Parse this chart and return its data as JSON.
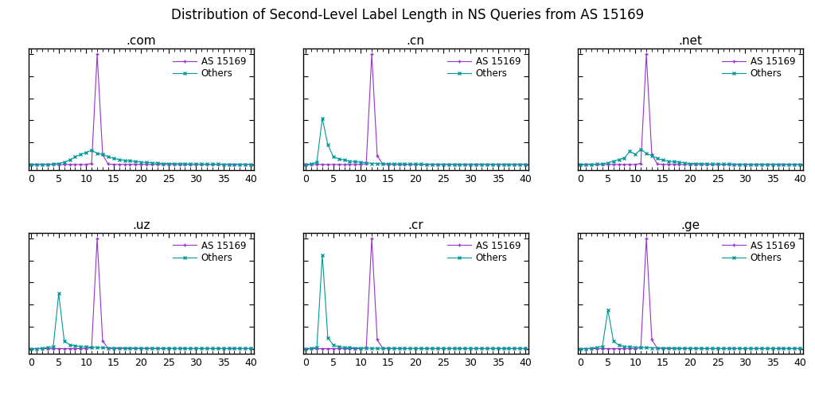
{
  "title": "Distribution of Second-Level Label Length in NS Queries from AS 15169",
  "subplots": [
    {
      "tld": ".com",
      "as15169": [
        0,
        0,
        0,
        0,
        0,
        0,
        0,
        0,
        0,
        0,
        0,
        0.01,
        1.0,
        0.09,
        0.003,
        0.001,
        0.0005,
        0.0003,
        0.0003,
        0.0003,
        0.0002,
        0.0002,
        0.0002,
        0.0002,
        0.0002,
        0.0001,
        0.0001,
        0.0001,
        0.0001,
        0.0001,
        0.0001,
        0.0001,
        0.0001,
        0.0001,
        0.0001,
        0.0001,
        0.0001,
        0.0001,
        0.0001,
        0.0001,
        0.0001
      ],
      "others": [
        0,
        0,
        0.001,
        0.002,
        0.004,
        0.01,
        0.02,
        0.04,
        0.07,
        0.09,
        0.11,
        0.13,
        0.1,
        0.09,
        0.07,
        0.055,
        0.045,
        0.038,
        0.032,
        0.027,
        0.022,
        0.018,
        0.015,
        0.012,
        0.01,
        0.009,
        0.008,
        0.007,
        0.006,
        0.005,
        0.004,
        0.004,
        0.003,
        0.003,
        0.003,
        0.002,
        0.002,
        0.002,
        0.002,
        0.002,
        0.002
      ]
    },
    {
      "tld": ".cn",
      "as15169": [
        0,
        0,
        0,
        0,
        0,
        0,
        0,
        0,
        0,
        0,
        0,
        0.008,
        1.0,
        0.08,
        0.003,
        0.001,
        0.0005,
        0.0003,
        0.0003,
        0.0002,
        0.0002,
        0.0002,
        0.0002,
        0.0001,
        0.0001,
        0.0001,
        0.0001,
        0.0001,
        0.0001,
        0.0001,
        0.0001,
        0.0001,
        0.0001,
        0.0001,
        0.0001,
        0.0001,
        0.0001,
        0.0001,
        0.0001,
        0.0001,
        0.0001
      ],
      "others": [
        0,
        0.005,
        0.02,
        0.42,
        0.18,
        0.07,
        0.05,
        0.04,
        0.03,
        0.025,
        0.02,
        0.015,
        0.01,
        0.009,
        0.007,
        0.006,
        0.006,
        0.005,
        0.004,
        0.004,
        0.003,
        0.003,
        0.002,
        0.002,
        0.002,
        0.001,
        0.001,
        0.001,
        0.001,
        0.001,
        0.001,
        0.001,
        0.001,
        0.001,
        0.001,
        0.001,
        0.001,
        0.001,
        0.001,
        0.001,
        0.001
      ]
    },
    {
      "tld": ".net",
      "as15169": [
        0,
        0,
        0,
        0,
        0,
        0,
        0,
        0,
        0,
        0,
        0,
        0.01,
        1.0,
        0.09,
        0.004,
        0.001,
        0.0005,
        0.0003,
        0.0003,
        0.0002,
        0.0002,
        0.0002,
        0.0002,
        0.0001,
        0.0001,
        0.0001,
        0.0001,
        0.0001,
        0.0001,
        0.0001,
        0.0001,
        0.0001,
        0.0001,
        0.0001,
        0.0001,
        0.0001,
        0.0001,
        0.0001,
        0.0001,
        0.0001,
        0.0001
      ],
      "others": [
        0,
        0,
        0.001,
        0.003,
        0.006,
        0.015,
        0.03,
        0.045,
        0.06,
        0.12,
        0.09,
        0.14,
        0.1,
        0.08,
        0.055,
        0.04,
        0.03,
        0.025,
        0.02,
        0.015,
        0.01,
        0.009,
        0.007,
        0.006,
        0.005,
        0.004,
        0.003,
        0.003,
        0.002,
        0.002,
        0.002,
        0.001,
        0.001,
        0.001,
        0.001,
        0.001,
        0.001,
        0.001,
        0.001,
        0.001,
        0.001
      ]
    },
    {
      "tld": ".uz",
      "as15169": [
        0,
        0,
        0,
        0,
        0,
        0,
        0,
        0,
        0,
        0,
        0,
        0.01,
        1.0,
        0.07,
        0.002,
        0.001,
        0.0005,
        0.0003,
        0.0002,
        0.0002,
        0.0001,
        0.0001,
        0.0001,
        0.0001,
        0.0001,
        0.0001,
        0.0001,
        0.0001,
        0.0001,
        0.0001,
        0.0001,
        0.0001,
        0.0001,
        0.0001,
        0.0001,
        0.0001,
        0.0001,
        0.0001,
        0.0001,
        0.0001,
        0.0001
      ],
      "others": [
        0,
        0,
        0.003,
        0.01,
        0.015,
        0.5,
        0.07,
        0.035,
        0.025,
        0.018,
        0.015,
        0.012,
        0.01,
        0.008,
        0.007,
        0.006,
        0.006,
        0.005,
        0.005,
        0.004,
        0.003,
        0.003,
        0.003,
        0.002,
        0.002,
        0.002,
        0.001,
        0.001,
        0.001,
        0.001,
        0.001,
        0.001,
        0.001,
        0.001,
        0.001,
        0.001,
        0.001,
        0.001,
        0.001,
        0.001,
        0.001
      ]
    },
    {
      "tld": ".cr",
      "as15169": [
        0,
        0,
        0,
        0,
        0,
        0,
        0,
        0,
        0,
        0,
        0,
        0.008,
        1.0,
        0.08,
        0.003,
        0.001,
        0.0005,
        0.0003,
        0.0002,
        0.0002,
        0.0001,
        0.0001,
        0.0001,
        0.0001,
        0.0001,
        0.0001,
        0.0001,
        0.0001,
        0.0001,
        0.0001,
        0.0001,
        0.0001,
        0.0001,
        0.0001,
        0.0001,
        0.0001,
        0.0001,
        0.0001,
        0.0001,
        0.0001,
        0.0001
      ],
      "others": [
        0,
        0.003,
        0.01,
        0.85,
        0.1,
        0.03,
        0.015,
        0.01,
        0.008,
        0.006,
        0.005,
        0.004,
        0.003,
        0.003,
        0.002,
        0.002,
        0.002,
        0.001,
        0.001,
        0.001,
        0.001,
        0.001,
        0.001,
        0.001,
        0.001,
        0.001,
        0.001,
        0.001,
        0.001,
        0.001,
        0.001,
        0.001,
        0.001,
        0.001,
        0.001,
        0.001,
        0.001,
        0.001,
        0.001,
        0.001,
        0.001
      ]
    },
    {
      "tld": ".ge",
      "as15169": [
        0,
        0,
        0,
        0,
        0,
        0,
        0,
        0,
        0,
        0,
        0,
        0.008,
        1.0,
        0.08,
        0.004,
        0.001,
        0.0005,
        0.0003,
        0.0002,
        0.0002,
        0.0001,
        0.0001,
        0.0001,
        0.0001,
        0.0001,
        0.0001,
        0.0001,
        0.0001,
        0.0001,
        0.0001,
        0.0001,
        0.0001,
        0.0001,
        0.0001,
        0.0001,
        0.0001,
        0.0001,
        0.0001,
        0.0001,
        0.0001,
        0.0001
      ],
      "others": [
        0,
        0,
        0.003,
        0.01,
        0.02,
        0.35,
        0.07,
        0.03,
        0.02,
        0.015,
        0.012,
        0.01,
        0.009,
        0.007,
        0.006,
        0.005,
        0.005,
        0.004,
        0.003,
        0.003,
        0.002,
        0.002,
        0.001,
        0.001,
        0.001,
        0.001,
        0.001,
        0.001,
        0.001,
        0.001,
        0.001,
        0.001,
        0.001,
        0.001,
        0.001,
        0.001,
        0.001,
        0.001,
        0.001,
        0.001,
        0.001
      ]
    }
  ],
  "as15169_color": "#9933cc",
  "others_color": "#009999",
  "as15169_marker": "+",
  "others_marker": "x",
  "xlim": [
    0,
    40
  ],
  "xticks": [
    0,
    5,
    10,
    15,
    20,
    25,
    30,
    35,
    40
  ],
  "legend_labels": [
    "AS 15169",
    "Others"
  ],
  "title_fontsize": 12,
  "subtitle_fontsize": 11,
  "tick_fontsize": 9
}
